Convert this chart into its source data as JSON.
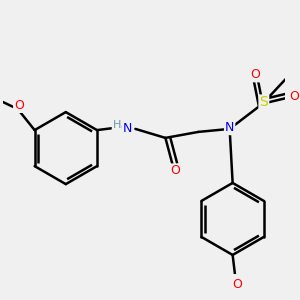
{
  "bg_color": "#f0f0f0",
  "bond_color": "#000000",
  "line_width": 1.8,
  "atom_colors": {
    "N": "#0000ff",
    "O": "#ff0000",
    "S": "#cccc00",
    "H": "#6699aa",
    "C": "#000000"
  },
  "figsize": [
    3.0,
    3.0
  ],
  "dpi": 100
}
